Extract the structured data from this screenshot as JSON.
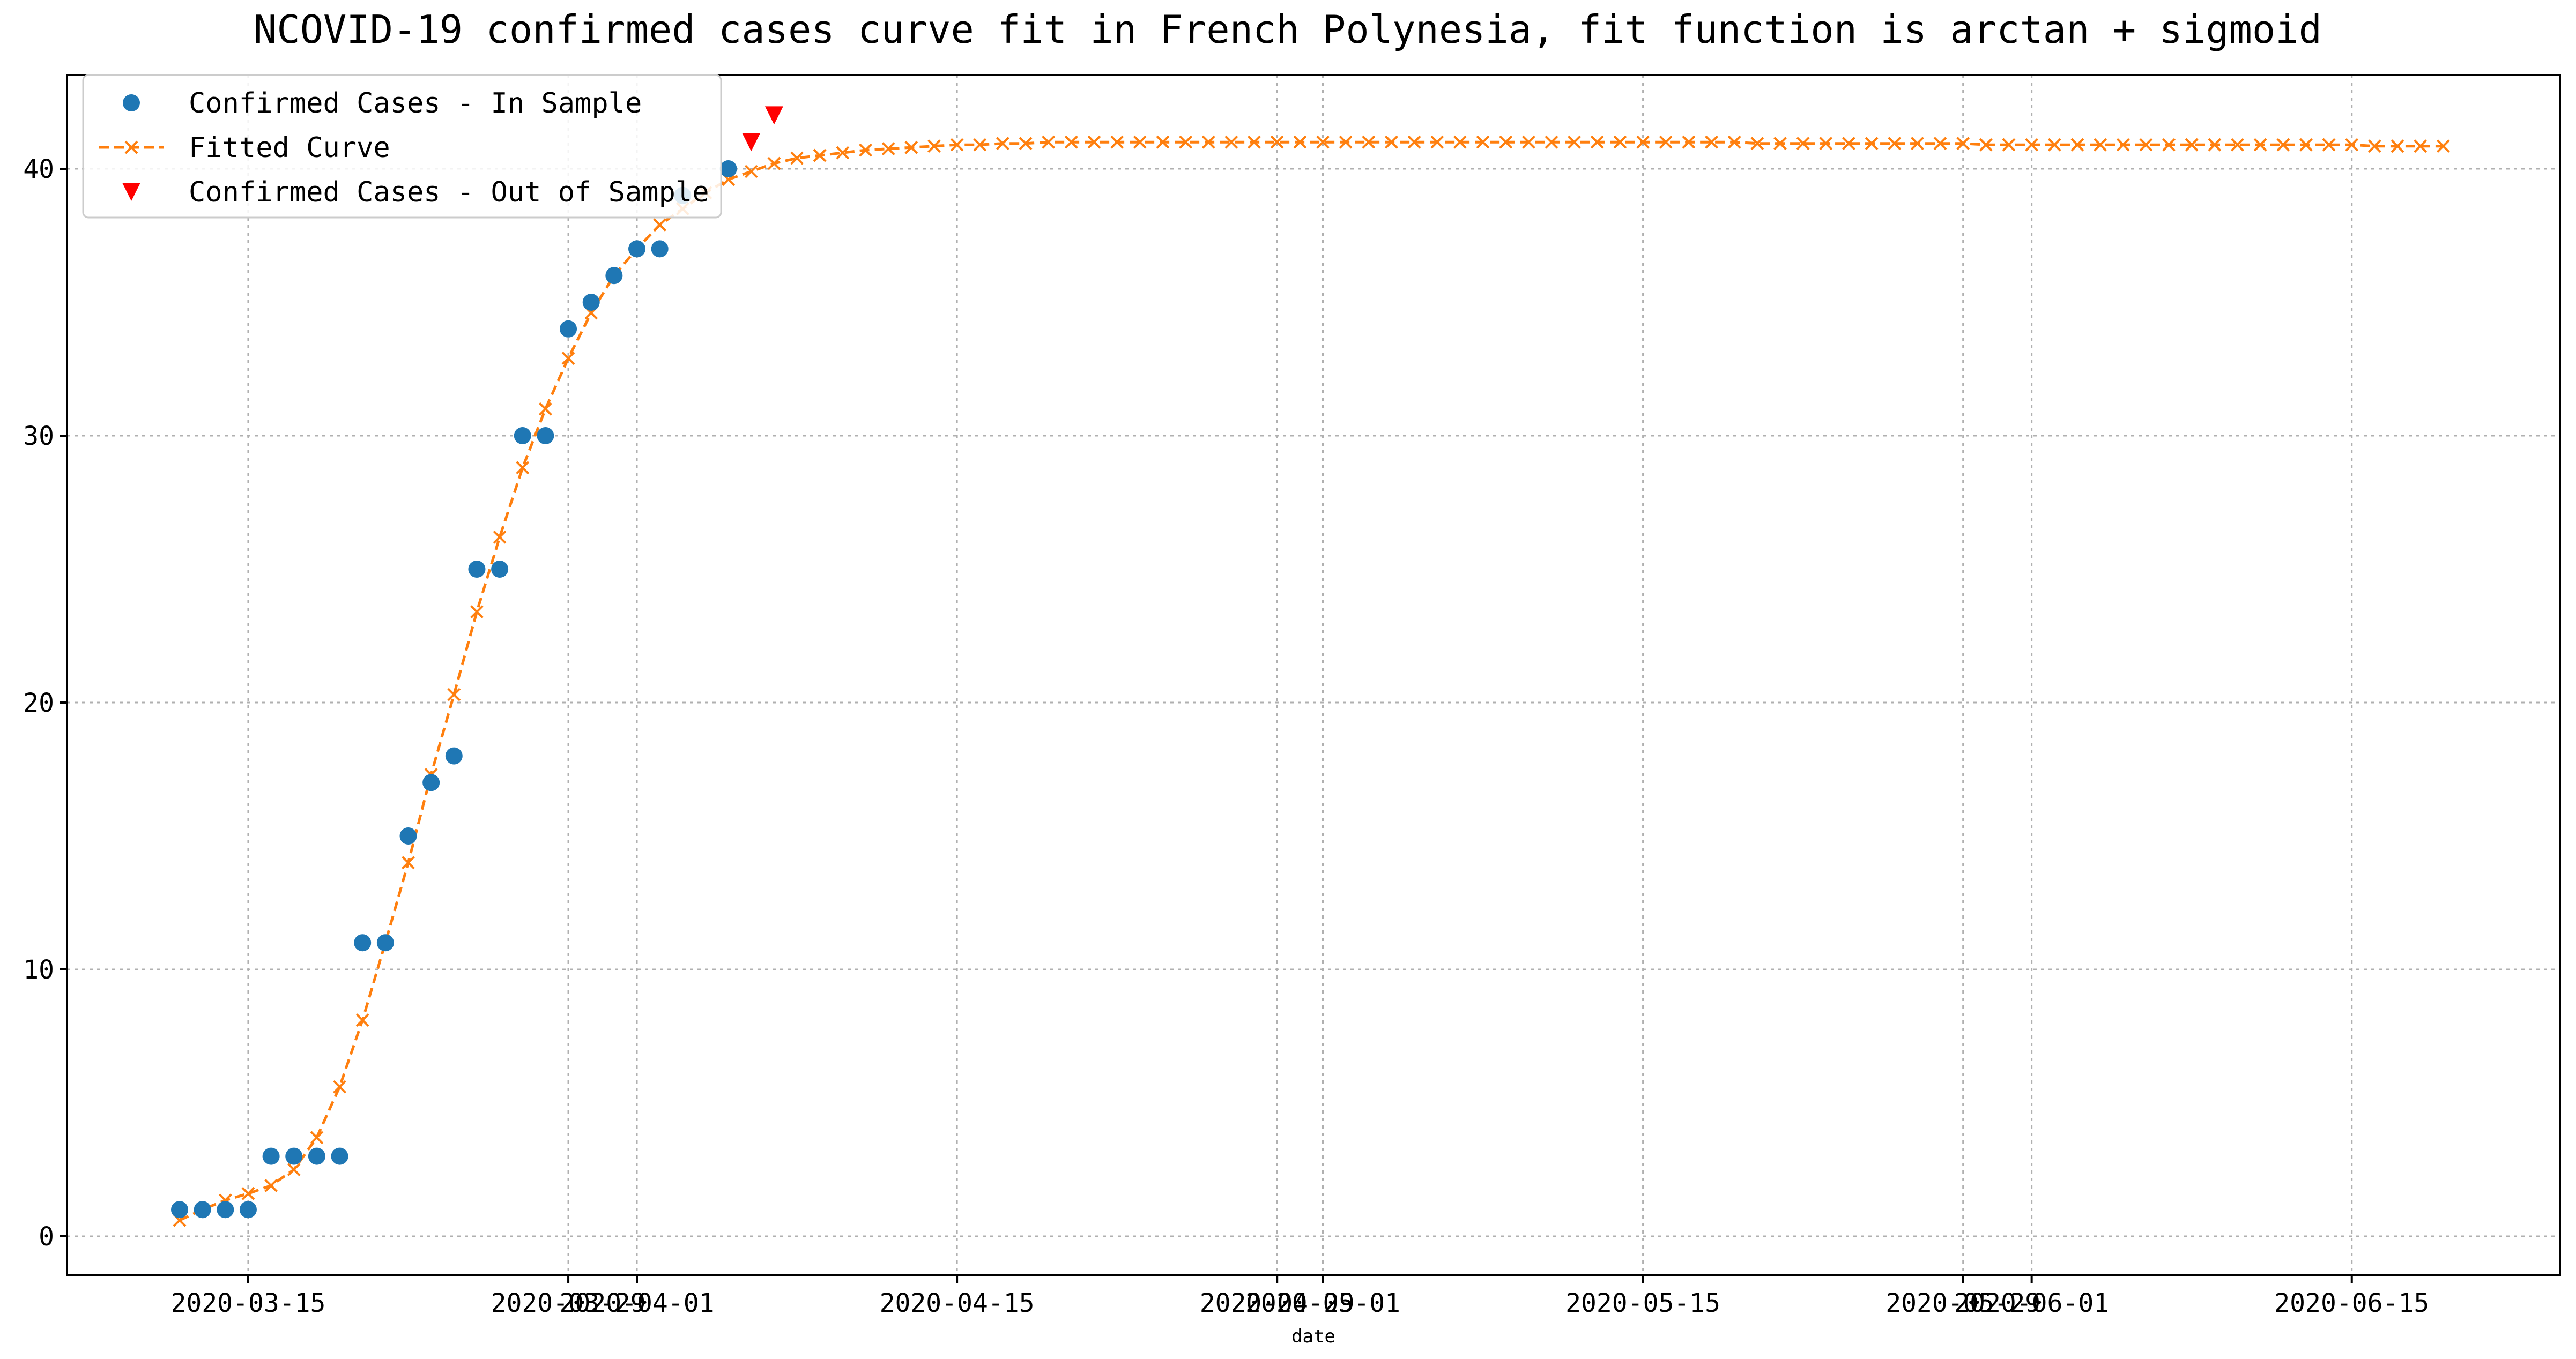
{
  "chart_data": {
    "type": "line",
    "title": "NCOVID-19 confirmed cases curve fit in French Polynesia, fit function is arctan + sigmoid",
    "xlabel": "date",
    "ylabel": "",
    "ylim": [
      -1.5,
      44
    ],
    "grid": true,
    "legend_position": "top-left",
    "x_start_date": "2020-03-12",
    "x_end_date": "2020-06-20",
    "x_ticks": [
      {
        "day": 3,
        "label": "2020-03-15"
      },
      {
        "day": 17,
        "label": "2020-03-29"
      },
      {
        "day": 20,
        "label": "2020-04-01"
      },
      {
        "day": 34,
        "label": "2020-04-15"
      },
      {
        "day": 48,
        "label": "2020-04-29"
      },
      {
        "day": 50,
        "label": "2020-05-01"
      },
      {
        "day": 64,
        "label": "2020-05-15"
      },
      {
        "day": 78,
        "label": "2020-05-29"
      },
      {
        "day": 81,
        "label": "2020-06-01"
      },
      {
        "day": 95,
        "label": "2020-06-15"
      }
    ],
    "y_ticks": [
      0,
      10,
      20,
      30,
      40
    ],
    "series": [
      {
        "name": "Confirmed Cases - In Sample",
        "marker": "circle",
        "color": "#1f77b4",
        "x": [
          0,
          1,
          2,
          3,
          4,
          5,
          6,
          7,
          8,
          9,
          10,
          11,
          12,
          13,
          14,
          15,
          16,
          17,
          18,
          19,
          20,
          21,
          22,
          24
        ],
        "y": [
          1,
          1,
          1,
          1,
          3,
          3,
          3,
          3,
          11,
          11,
          15,
          17,
          18,
          25,
          25,
          30,
          30,
          34,
          35,
          36,
          37,
          37,
          39,
          40
        ]
      },
      {
        "name": "Fitted Curve",
        "marker": "x",
        "linestyle": "dashed",
        "color": "#ff7f0e",
        "x_start": 0,
        "y": [
          0.6,
          1.0,
          1.35,
          1.6,
          1.9,
          2.5,
          3.7,
          5.6,
          8.1,
          11.0,
          14.0,
          17.3,
          20.3,
          23.4,
          26.2,
          28.8,
          31.0,
          32.9,
          34.6,
          36.0,
          37.0,
          37.9,
          38.5,
          39.1,
          39.6,
          39.9,
          40.2,
          40.4,
          40.5,
          40.6,
          40.7,
          40.75,
          40.8,
          40.85,
          40.9,
          40.9,
          40.95,
          40.95,
          41.0,
          41.0,
          41.0,
          41.0,
          41.0,
          41.0,
          41.0,
          41.0,
          41.0,
          41.0,
          41.0,
          41.0,
          41.0,
          41.0,
          41.0,
          41.0,
          41.0,
          41.0,
          41.0,
          41.0,
          41.0,
          41.0,
          41.0,
          41.0,
          41.0,
          41.0,
          41.0,
          41.0,
          41.0,
          41.0,
          41.0,
          40.95,
          40.95,
          40.95,
          40.95,
          40.95,
          40.95,
          40.95,
          40.95,
          40.95,
          40.95,
          40.9,
          40.9,
          40.9,
          40.9,
          40.9,
          40.9,
          40.9,
          40.9,
          40.9,
          40.9,
          40.9,
          40.9,
          40.9,
          40.9,
          40.9,
          40.9,
          40.9,
          40.85,
          40.85,
          40.85,
          40.85
        ]
      },
      {
        "name": "Confirmed Cases - Out of Sample",
        "marker": "triangle-down",
        "color": "#ff0000",
        "x": [
          25,
          26
        ],
        "y": [
          41,
          42
        ]
      }
    ]
  }
}
